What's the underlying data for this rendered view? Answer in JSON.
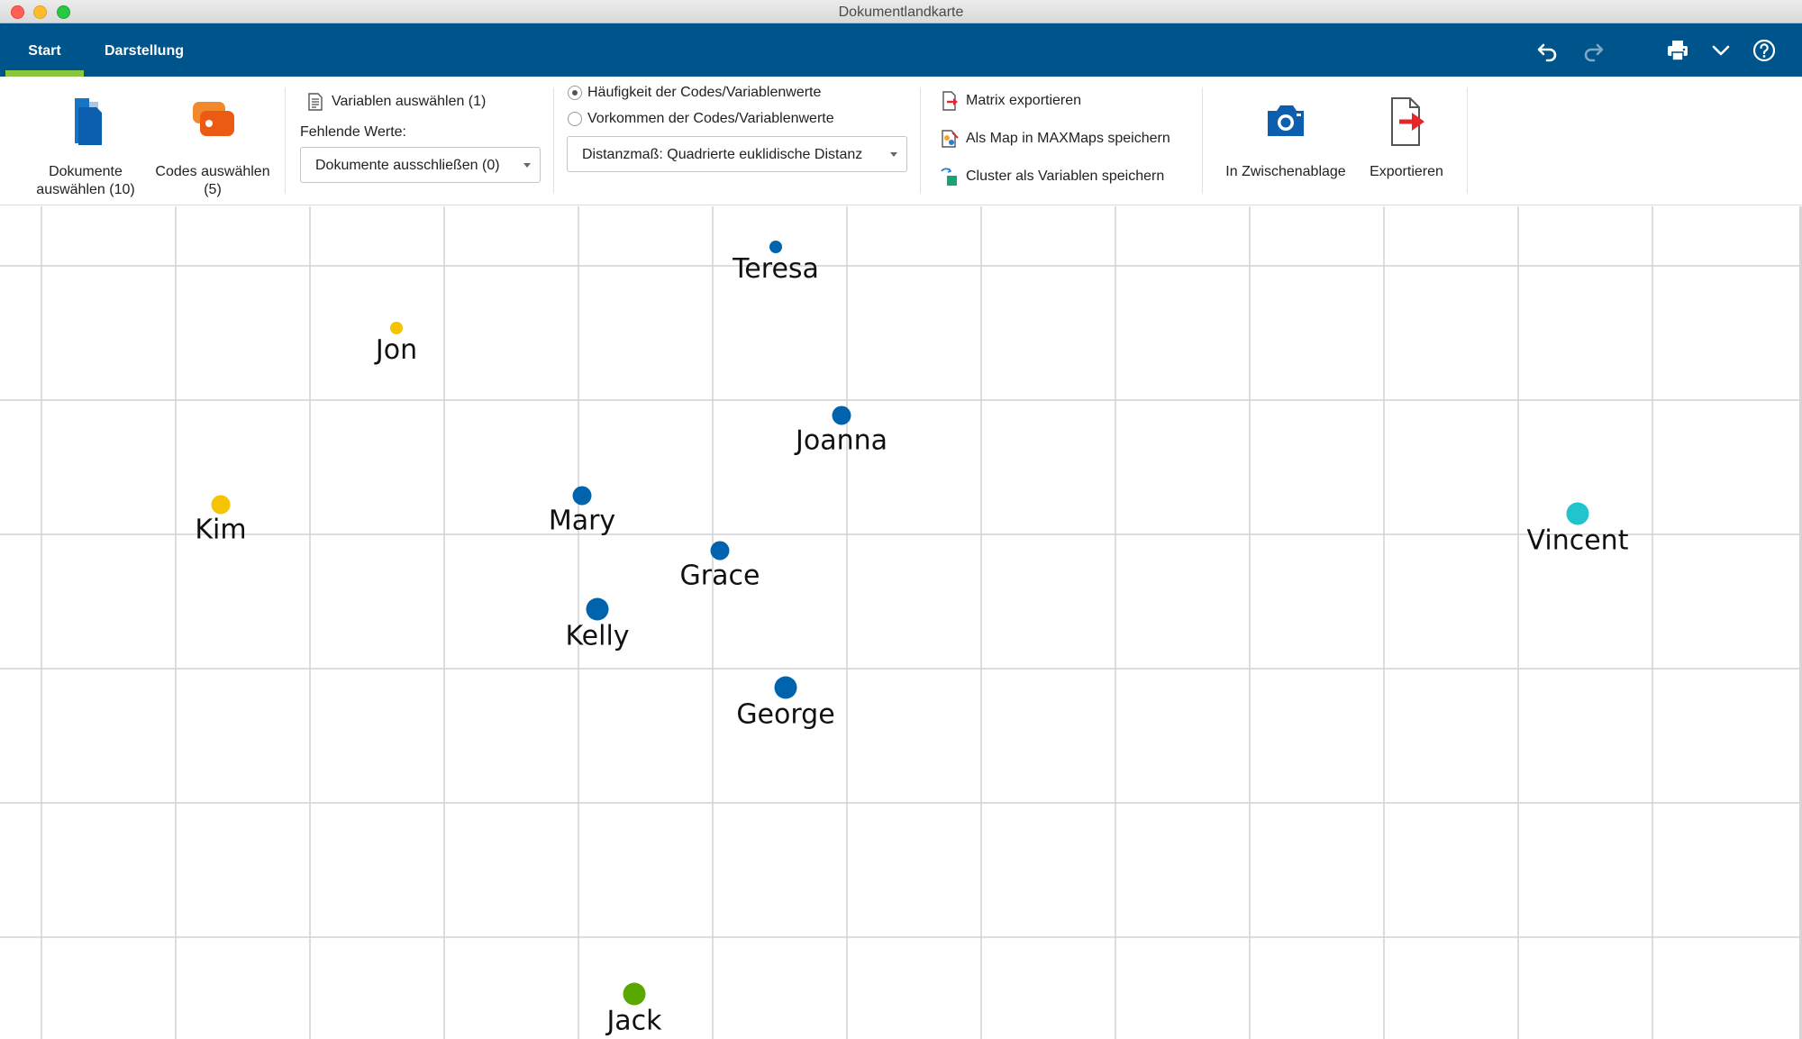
{
  "window": {
    "title": "Dokumentlandkarte"
  },
  "tabs": [
    {
      "label": "Start",
      "active": true
    },
    {
      "label": "Darstellung",
      "active": false
    }
  ],
  "toolbar_icons": [
    "undo-icon",
    "redo-icon",
    "print-icon",
    "chevron-down-icon",
    "help-icon"
  ],
  "ribbon": {
    "documents": {
      "label_line1": "Dokumente",
      "label_line2": "auswählen (10)"
    },
    "codes": {
      "label_line1": "Codes auswählen",
      "label_line2": "(5)"
    },
    "variables": {
      "label": "Variablen auswählen (1)"
    },
    "missing": {
      "label": "Fehlende Werte:",
      "selected": "Dokumente ausschließen (0)"
    },
    "mode": {
      "option_frequency": "Häufigkeit der Codes/Variablenwerte",
      "option_occurrence": "Vorkommen der Codes/Variablenwerte",
      "selected": "option_frequency"
    },
    "distance": {
      "selected": "Distanzmaß: Quadrierte euklidische Distanz"
    },
    "export": {
      "matrix": "Matrix exportieren",
      "maxmaps": "Als Map in MAXMaps speichern",
      "cluster": "Cluster als Variablen speichern"
    },
    "clipboard": {
      "label": "In Zwischenablage"
    },
    "export_btn": {
      "label": "Exportieren"
    }
  },
  "colors": {
    "brand": "#00548c",
    "active_tab_underline": "#8cc63f",
    "cluster_blue": "#0063ad",
    "cluster_yellow": "#f5c300",
    "cluster_cyan": "#1fc4cc",
    "cluster_green": "#5aa700"
  },
  "map_points": [
    {
      "name": "Teresa",
      "cluster": "blue",
      "size": "small"
    },
    {
      "name": "Jon",
      "cluster": "yellow",
      "size": "small"
    },
    {
      "name": "Joanna",
      "cluster": "blue",
      "size": "medium"
    },
    {
      "name": "Mary",
      "cluster": "blue",
      "size": "medium"
    },
    {
      "name": "Kim",
      "cluster": "yellow",
      "size": "medium"
    },
    {
      "name": "Vincent",
      "cluster": "cyan",
      "size": "large"
    },
    {
      "name": "Grace",
      "cluster": "blue",
      "size": "medium"
    },
    {
      "name": "Kelly",
      "cluster": "blue",
      "size": "large"
    },
    {
      "name": "George",
      "cluster": "blue",
      "size": "large"
    },
    {
      "name": "Jack",
      "cluster": "green",
      "size": "large"
    }
  ]
}
